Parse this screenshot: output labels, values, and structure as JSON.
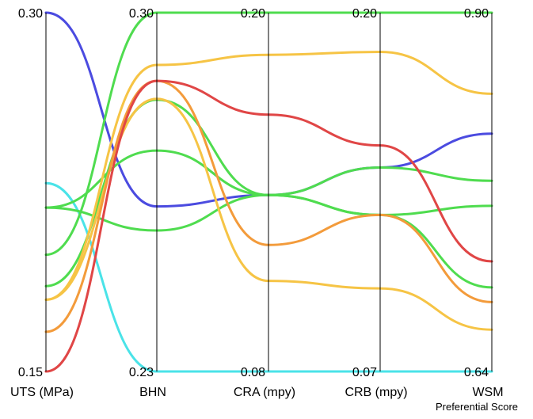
{
  "chart_data": {
    "type": "parallel_coordinates",
    "axes": [
      {
        "name": "UTS (MPa)",
        "subtitle": "",
        "min": 0.15,
        "max": 0.3,
        "min_label": "0.15",
        "max_label": "0.30"
      },
      {
        "name": "BHN",
        "subtitle": "",
        "min": 0.23,
        "max": 0.3,
        "min_label": "0.23",
        "max_label": "0.30"
      },
      {
        "name": "CRA (mpy)",
        "subtitle": "",
        "min": 0.08,
        "max": 0.2,
        "min_label": "0.08",
        "max_label": "0.20"
      },
      {
        "name": "CRB (mpy)",
        "subtitle": "",
        "min": 0.07,
        "max": 0.2,
        "min_label": "0.07",
        "max_label": "0.20"
      },
      {
        "name": "WSM",
        "subtitle": "Preferential Score",
        "min": 0.64,
        "max": 0.9,
        "min_label": "0.64",
        "max_label": "0.90"
      }
    ],
    "series": [
      {
        "name": "line-blue",
        "color": "#4b4be0",
        "values": [
          0.3,
          0.2622,
          0.139,
          0.1439,
          0.8123
        ]
      },
      {
        "name": "line-cyan",
        "color": "#4ae3e8",
        "values": [
          0.2287,
          0.23,
          0.08,
          0.07,
          0.64
        ]
      },
      {
        "name": "line-green-1",
        "color": "#4fdc4f",
        "values": [
          0.1988,
          0.3,
          0.2,
          0.2,
          0.9
        ]
      },
      {
        "name": "line-green-2",
        "color": "#4fdc4f",
        "values": [
          0.1857,
          0.283,
          0.139,
          0.1439,
          0.7782
        ]
      },
      {
        "name": "line-green-3",
        "color": "#4fdc4f",
        "values": [
          0.2185,
          0.2731,
          0.139,
          0.1267,
          0.7009
        ]
      },
      {
        "name": "line-green-4",
        "color": "#4fdc4f",
        "values": [
          0.2185,
          0.2575,
          0.139,
          0.1267,
          0.76
        ]
      },
      {
        "name": "line-yellow-1",
        "color": "#f6c445",
        "values": [
          0.18,
          0.2898,
          0.1859,
          0.1858,
          0.8412
        ]
      },
      {
        "name": "line-yellow-2",
        "color": "#f6c445",
        "values": [
          0.18,
          0.2832,
          0.1103,
          0.1001,
          0.6703
        ]
      },
      {
        "name": "line-orange",
        "color": "#f39b3b",
        "values": [
          0.1666,
          0.2867,
          0.1223,
          0.1267,
          0.6903
        ]
      },
      {
        "name": "line-red",
        "color": "#e04646",
        "values": [
          0.15,
          0.2867,
          0.1659,
          0.1519,
          0.7198
        ]
      }
    ]
  }
}
